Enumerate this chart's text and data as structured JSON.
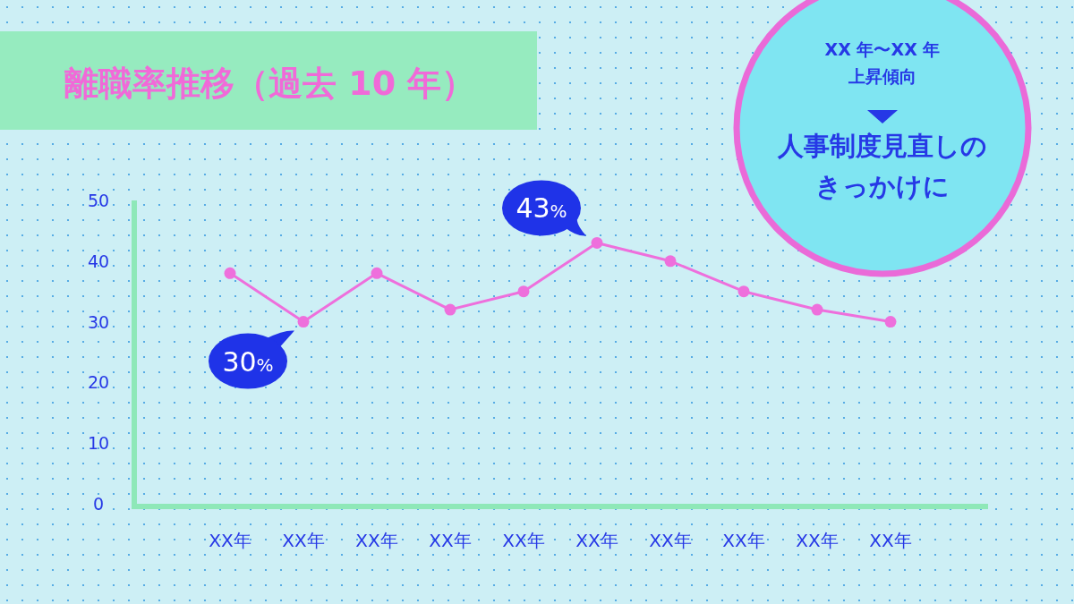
{
  "chart_data": {
    "type": "line",
    "title": "離職率推移（過去 10 年）",
    "categories": [
      "XX年",
      "XX年",
      "XX年",
      "XX年",
      "XX年",
      "XX年",
      "XX年",
      "XX年",
      "XX年",
      "XX年"
    ],
    "series": [
      {
        "color": "#ee6fdc",
        "values": [
          38,
          30,
          38,
          32,
          35,
          43,
          40,
          35,
          32,
          30
        ],
        "value_labels": [
          null,
          "30%",
          null,
          null,
          null,
          "43%",
          null,
          null,
          null,
          null
        ]
      }
    ],
    "ylim": [
      0,
      50
    ],
    "yticks": [
      0,
      10,
      20,
      30,
      40,
      50
    ],
    "marker": "circle",
    "annotations": [
      "XX 年〜XX 年",
      "上昇傾向",
      "人事制度見直しの",
      "きっかけに"
    ]
  }
}
